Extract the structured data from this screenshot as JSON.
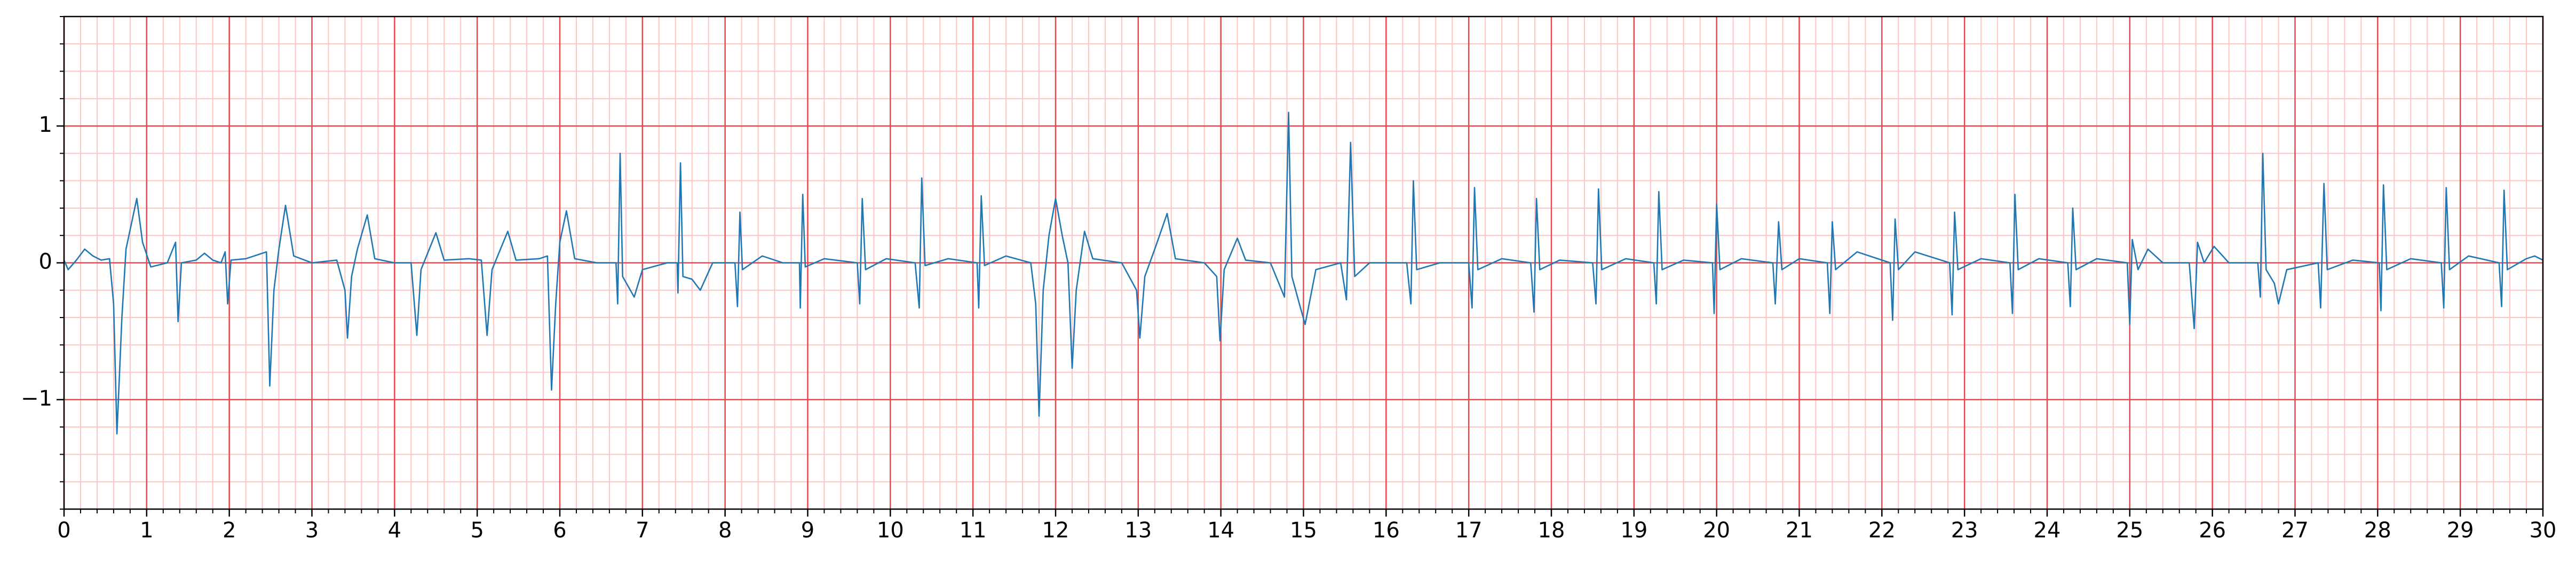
{
  "chart_data": {
    "type": "line",
    "color": "#1f77b4",
    "grid": true,
    "minor_step": 0.2,
    "xlim": [
      0,
      30
    ],
    "ylim": [
      -1.8,
      1.8
    ],
    "xticks": [
      0,
      1,
      2,
      3,
      4,
      5,
      6,
      7,
      8,
      9,
      10,
      11,
      12,
      13,
      14,
      15,
      16,
      17,
      18,
      19,
      20,
      21,
      22,
      23,
      24,
      25,
      26,
      27,
      28,
      29,
      30
    ],
    "yticks": [
      {
        "value": -1,
        "label": "−1"
      },
      0,
      1
    ],
    "x": [
      0,
      0.05,
      0.15,
      0.25,
      0.35,
      0.45,
      0.55,
      0.6,
      0.64,
      0.7,
      0.75,
      0.88,
      0.95,
      1.05,
      1.25,
      1.35,
      1.38,
      1.42,
      1.6,
      1.7,
      1.8,
      1.9,
      1.95,
      1.98,
      2.02,
      2.2,
      2.45,
      2.49,
      2.54,
      2.6,
      2.68,
      2.78,
      3.0,
      3.3,
      3.4,
      3.43,
      3.48,
      3.55,
      3.67,
      3.76,
      4.0,
      4.2,
      4.27,
      4.32,
      4.5,
      4.6,
      4.9,
      5.05,
      5.12,
      5.18,
      5.37,
      5.47,
      5.75,
      5.85,
      5.9,
      5.95,
      6.0,
      6.08,
      6.18,
      6.45,
      6.68,
      6.7,
      6.73,
      6.76,
      6.9,
      7.0,
      7.3,
      7.42,
      7.43,
      7.46,
      7.49,
      7.6,
      7.7,
      7.85,
      8.12,
      8.15,
      8.18,
      8.21,
      8.45,
      8.7,
      8.9,
      8.91,
      8.94,
      8.97,
      9.2,
      9.6,
      9.63,
      9.66,
      9.7,
      9.95,
      10.3,
      10.35,
      10.38,
      10.42,
      10.7,
      11.05,
      11.07,
      11.1,
      11.14,
      11.4,
      11.7,
      11.76,
      11.8,
      11.85,
      11.92,
      12.0,
      12.08,
      12.15,
      12.2,
      12.25,
      12.35,
      12.45,
      12.8,
      12.98,
      13.02,
      13.08,
      13.2,
      13.35,
      13.45,
      13.8,
      13.95,
      13.99,
      14.04,
      14.2,
      14.3,
      14.6,
      14.77,
      14.82,
      14.86,
      14.95,
      15.02,
      15.15,
      15.45,
      15.52,
      15.57,
      15.62,
      15.8,
      16.25,
      16.3,
      16.33,
      16.37,
      16.65,
      17.0,
      17.04,
      17.07,
      17.11,
      17.4,
      17.75,
      17.79,
      17.82,
      17.86,
      18.1,
      18.5,
      18.54,
      18.57,
      18.61,
      18.9,
      19.24,
      19.27,
      19.3,
      19.34,
      19.6,
      19.95,
      19.97,
      20.0,
      20.04,
      20.3,
      20.68,
      20.71,
      20.75,
      20.79,
      21.0,
      21.34,
      21.37,
      21.4,
      21.44,
      21.7,
      22.1,
      22.13,
      22.16,
      22.2,
      22.4,
      22.82,
      22.85,
      22.88,
      22.92,
      23.2,
      23.55,
      23.58,
      23.61,
      23.65,
      23.9,
      24.25,
      24.28,
      24.31,
      24.35,
      24.6,
      24.97,
      25.0,
      25.03,
      25.1,
      25.22,
      25.4,
      25.72,
      25.78,
      25.82,
      25.9,
      26.02,
      26.2,
      26.55,
      26.58,
      26.61,
      26.65,
      26.75,
      26.8,
      26.9,
      27.28,
      27.31,
      27.35,
      27.39,
      27.7,
      28.02,
      28.04,
      28.07,
      28.11,
      28.4,
      28.77,
      28.8,
      28.83,
      28.87,
      29.1,
      29.47,
      29.5,
      29.53,
      29.57,
      29.8,
      29.9,
      30
    ],
    "values": [
      0.02,
      -0.05,
      0.02,
      0.1,
      0.05,
      0.02,
      0.03,
      -0.3,
      -1.25,
      -0.4,
      0.1,
      0.47,
      0.15,
      -0.03,
      0.0,
      0.15,
      -0.43,
      0.0,
      0.02,
      0.07,
      0.02,
      0.0,
      0.08,
      -0.3,
      0.02,
      0.03,
      0.08,
      -0.9,
      -0.2,
      0.1,
      0.42,
      0.05,
      0.0,
      0.02,
      -0.2,
      -0.55,
      -0.1,
      0.1,
      0.35,
      0.03,
      0.0,
      0.0,
      -0.53,
      -0.05,
      0.22,
      0.02,
      0.03,
      0.02,
      -0.53,
      -0.05,
      0.23,
      0.02,
      0.03,
      0.05,
      -0.93,
      -0.3,
      0.15,
      0.38,
      0.03,
      0.0,
      0.0,
      -0.3,
      0.8,
      -0.1,
      -0.25,
      -0.05,
      0.0,
      0.0,
      -0.22,
      0.73,
      -0.1,
      -0.12,
      -0.2,
      0.0,
      0.0,
      -0.32,
      0.37,
      -0.05,
      0.05,
      0.0,
      0.0,
      -0.33,
      0.5,
      -0.03,
      0.03,
      0.0,
      -0.3,
      0.47,
      -0.05,
      0.03,
      0.0,
      -0.33,
      0.62,
      -0.02,
      0.03,
      0.0,
      -0.33,
      0.49,
      -0.02,
      0.05,
      0.0,
      -0.3,
      -1.12,
      -0.2,
      0.2,
      0.47,
      0.2,
      0.0,
      -0.77,
      -0.2,
      0.23,
      0.03,
      0.0,
      -0.2,
      -0.55,
      -0.1,
      0.1,
      0.36,
      0.03,
      0.0,
      -0.1,
      -0.57,
      -0.05,
      0.18,
      0.02,
      0.0,
      -0.25,
      1.1,
      -0.1,
      -0.3,
      -0.45,
      -0.05,
      0.0,
      -0.27,
      0.88,
      -0.1,
      0.0,
      0.0,
      -0.3,
      0.6,
      -0.05,
      0.0,
      0.0,
      -0.33,
      0.55,
      -0.05,
      0.03,
      0.0,
      -0.36,
      0.47,
      -0.05,
      0.02,
      0.0,
      -0.3,
      0.54,
      -0.05,
      0.03,
      0.0,
      -0.3,
      0.52,
      -0.05,
      0.02,
      0.0,
      -0.37,
      0.43,
      -0.05,
      0.03,
      0.0,
      -0.3,
      0.3,
      -0.05,
      0.03,
      0.0,
      -0.37,
      0.3,
      -0.05,
      0.08,
      0.0,
      -0.42,
      0.32,
      -0.05,
      0.08,
      0.0,
      -0.38,
      0.37,
      -0.05,
      0.03,
      0.0,
      -0.37,
      0.5,
      -0.05,
      0.03,
      0.0,
      -0.32,
      0.4,
      -0.05,
      0.03,
      0.0,
      -0.45,
      0.17,
      -0.05,
      0.1,
      0.0,
      0.0,
      -0.48,
      0.15,
      0.0,
      0.12,
      0.0,
      0.0,
      -0.25,
      0.8,
      -0.05,
      -0.15,
      -0.3,
      -0.05,
      0.0,
      -0.33,
      0.58,
      -0.05,
      0.02,
      0.0,
      -0.35,
      0.57,
      -0.05,
      0.03,
      0.0,
      -0.33,
      0.55,
      -0.05,
      0.05,
      0.0,
      -0.32,
      0.53,
      -0.05,
      0.03,
      0.05,
      0.02
    ]
  }
}
